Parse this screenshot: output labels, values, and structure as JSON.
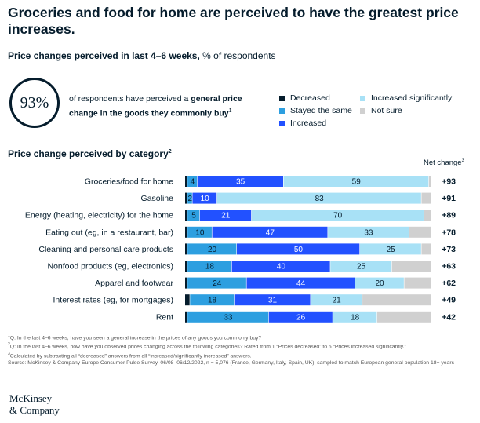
{
  "title": "Groceries and food for home are perceived to have the greatest price increases.",
  "subtitle": {
    "bold": "Price changes perceived in last 4–6 weeks,",
    "rest": " % of respondents"
  },
  "stat": {
    "value": "93%",
    "text_before": "of respondents have perceived a ",
    "text_bold": "general price change in the goods they commonly buy",
    "footnote_marker": "1"
  },
  "legend": [
    {
      "label": "Decreased",
      "color": "#051c2c"
    },
    {
      "label": "Stayed the same",
      "color": "#2d9fe0"
    },
    {
      "label": "Increased",
      "color": "#2251ff"
    },
    {
      "label": "Increased significantly",
      "color": "#a8e1f6"
    },
    {
      "label": "Not sure",
      "color": "#d0d0d0"
    }
  ],
  "section_title": "Price change perceived by category",
  "section_footnote": "2",
  "net_change_header": "Net change",
  "net_change_footnote": "3",
  "chart_data": {
    "type": "bar",
    "orientation": "horizontal",
    "stacked": true,
    "xlim": [
      0,
      100
    ],
    "categories": [
      "Groceries/food for home",
      "Gasoline",
      "Energy (heating, electricity) for the home",
      "Eating out (eg, in a restaurant, bar)",
      "Cleaning and personal care products",
      "Nonfood products (eg, electronics)",
      "Apparel and footwear",
      "Interest rates (eg, for mortgages)",
      "Rent"
    ],
    "series": [
      {
        "name": "Decreased",
        "color": "#051c2c",
        "values": [
          1,
          1,
          1,
          1,
          1,
          1,
          1,
          2,
          1
        ]
      },
      {
        "name": "Stayed the same",
        "color": "#2d9fe0",
        "values": [
          4,
          2,
          5,
          10,
          20,
          18,
          24,
          18,
          33
        ],
        "labels": [
          "4",
          "2",
          "5",
          "10",
          "20",
          "18",
          "24",
          "18",
          "33"
        ]
      },
      {
        "name": "Increased",
        "color": "#2251ff",
        "values": [
          35,
          10,
          21,
          47,
          50,
          40,
          44,
          31,
          26
        ],
        "labels": [
          "35",
          "10",
          "21",
          "47",
          "50",
          "40",
          "44",
          "31",
          "26"
        ]
      },
      {
        "name": "Increased significantly",
        "color": "#a8e1f6",
        "values": [
          59,
          83,
          70,
          33,
          25,
          25,
          20,
          21,
          18
        ],
        "labels": [
          "59",
          "83",
          "70",
          "33",
          "25",
          "25",
          "20",
          "21",
          "18"
        ]
      },
      {
        "name": "Not sure",
        "color": "#d0d0d0",
        "values": [
          1,
          4,
          3,
          9,
          4,
          16,
          11,
          28,
          22
        ]
      }
    ],
    "net_change": [
      "+93",
      "+91",
      "+89",
      "+78",
      "+73",
      "+63",
      "+62",
      "+49",
      "+42"
    ]
  },
  "footnotes": [
    {
      "marker": "1",
      "text": "Q: In the last 4–6 weeks, have you seen a general increase in the prices of any goods you commonly buy?"
    },
    {
      "marker": "2",
      "text": "Q: In the last 4–6 weeks, how have you observed prices changing across the following categories? Rated from 1 “Prices decreased” to 5 “Prices increased significantly.”"
    },
    {
      "marker": "3",
      "text": "Calculated by subtracting all “decreased” answers from all “increased/significantly increased” answers."
    },
    {
      "marker": "",
      "text": "Source: McKinsey & Company Europe Consumer Pulse Survey, 06/08–06/12/2022, n = 5,076 (France, Germany, Italy, Spain, UK), sampled to match European general population 18+ years"
    }
  ],
  "logo": {
    "line1": "McKinsey",
    "line2": "& Company"
  }
}
